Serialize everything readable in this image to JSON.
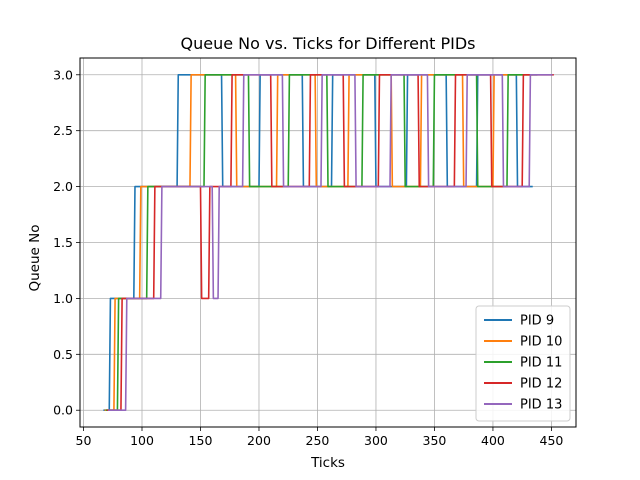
{
  "chart_data": {
    "type": "line",
    "title": "Queue No vs. Ticks for Different PIDs",
    "xlabel": "Ticks",
    "ylabel": "Queue No",
    "xlim": [
      47,
      471
    ],
    "ylim": [
      -0.15,
      3.15
    ],
    "xticks": [
      50,
      100,
      150,
      200,
      250,
      300,
      350,
      400,
      450
    ],
    "yticks": [
      0.0,
      0.5,
      1.0,
      1.5,
      2.0,
      2.5,
      3.0
    ],
    "ytick_labels": [
      "0.0",
      "0.5",
      "1.0",
      "1.5",
      "2.0",
      "2.5",
      "3.0"
    ],
    "grid": true,
    "legend_position": "lower-right",
    "series": [
      {
        "name": "PID 9",
        "color": "#1f77b4",
        "x": [
          67,
          72,
          73,
          93,
          94,
          130,
          131,
          168,
          169,
          200,
          201,
          237,
          238,
          262,
          263,
          299,
          300,
          326,
          327,
          360,
          361,
          386,
          387,
          420,
          421,
          434
        ],
        "y": [
          0,
          0,
          1,
          1,
          2,
          2,
          3,
          3,
          2,
          2,
          3,
          3,
          2,
          2,
          3,
          3,
          2,
          2,
          3,
          3,
          2,
          2,
          3,
          3,
          2,
          2
        ]
      },
      {
        "name": "PID 10",
        "color": "#ff7f0e",
        "x": [
          68,
          76,
          77,
          98,
          99,
          141,
          142,
          180,
          181,
          215,
          216,
          248,
          249,
          276,
          277,
          313,
          314,
          338,
          339,
          374,
          375,
          400,
          401,
          434
        ],
        "y": [
          0,
          0,
          1,
          1,
          2,
          2,
          3,
          3,
          2,
          2,
          3,
          3,
          2,
          2,
          3,
          3,
          2,
          2,
          3,
          3,
          2,
          2,
          3,
          3
        ]
      },
      {
        "name": "PID 11",
        "color": "#2ca02c",
        "x": [
          69,
          79,
          80,
          104,
          105,
          153,
          154,
          191,
          192,
          225,
          226,
          258,
          259,
          288,
          289,
          324,
          325,
          349,
          350,
          386,
          387,
          412,
          413,
          438
        ],
        "y": [
          0,
          0,
          1,
          1,
          2,
          2,
          3,
          3,
          2,
          2,
          3,
          3,
          2,
          2,
          3,
          3,
          2,
          2,
          3,
          3,
          2,
          2,
          3,
          3
        ]
      },
      {
        "name": "PID 12",
        "color": "#d62728",
        "x": [
          70,
          82,
          83,
          110,
          111,
          150,
          151,
          157,
          158,
          176,
          177,
          210,
          211,
          243,
          244,
          272,
          273,
          302,
          303,
          336,
          337,
          367,
          368,
          398,
          399,
          425,
          426,
          452
        ],
        "y": [
          0,
          0,
          1,
          1,
          2,
          2,
          1,
          1,
          2,
          2,
          3,
          3,
          2,
          2,
          3,
          3,
          2,
          2,
          3,
          3,
          2,
          2,
          3,
          3,
          2,
          2,
          3,
          3
        ]
      },
      {
        "name": "PID 13",
        "color": "#9467bd",
        "x": [
          71,
          86,
          87,
          116,
          117,
          160,
          161,
          165,
          166,
          186,
          187,
          220,
          221,
          253,
          254,
          282,
          283,
          312,
          313,
          344,
          345,
          377,
          378,
          408,
          409,
          431,
          432,
          451
        ],
        "y": [
          0,
          0,
          1,
          1,
          2,
          2,
          1,
          1,
          2,
          2,
          3,
          3,
          2,
          2,
          3,
          3,
          2,
          2,
          3,
          3,
          2,
          2,
          3,
          3,
          2,
          2,
          3,
          3
        ]
      }
    ]
  }
}
